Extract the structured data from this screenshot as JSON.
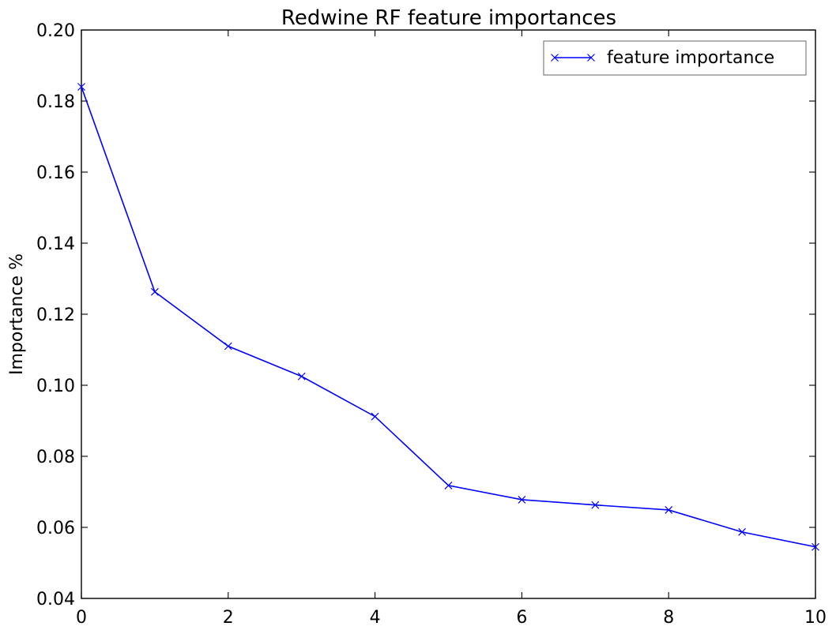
{
  "chart_data": {
    "type": "line",
    "title": "Redwine RF feature importances",
    "xlabel": "",
    "ylabel": "Importance %",
    "xlim": [
      0,
      10
    ],
    "ylim": [
      0.04,
      0.2
    ],
    "xticks": [
      0,
      2,
      4,
      6,
      8,
      10
    ],
    "xtick_labels": [
      "0",
      "2",
      "4",
      "6",
      "8",
      "10"
    ],
    "yticks": [
      0.04,
      0.06,
      0.08,
      0.1,
      0.12,
      0.14,
      0.16,
      0.18,
      0.2
    ],
    "ytick_labels": [
      "0.04",
      "0.06",
      "0.08",
      "0.10",
      "0.12",
      "0.14",
      "0.16",
      "0.18",
      "0.20"
    ],
    "grid": false,
    "legend_position": "top-right",
    "series": [
      {
        "name": "feature importance",
        "color": "#0000ff",
        "marker": "x",
        "x": [
          0,
          1,
          2,
          3,
          4,
          5,
          6,
          7,
          8,
          9,
          10
        ],
        "y": [
          0.184,
          0.1263,
          0.111,
          0.1025,
          0.0912,
          0.0718,
          0.0678,
          0.0663,
          0.0649,
          0.0587,
          0.0545
        ]
      }
    ]
  }
}
